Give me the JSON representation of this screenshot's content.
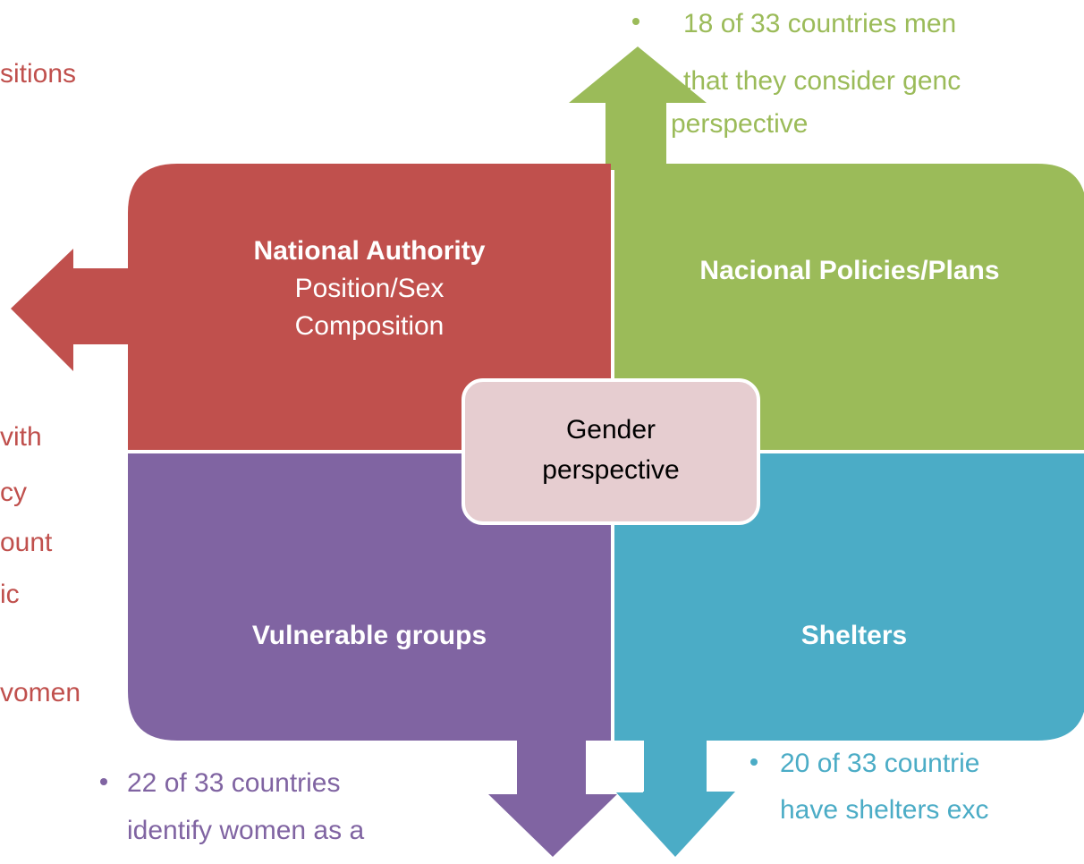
{
  "left_notes": {
    "top": "sitions",
    "lines": [
      "vith",
      "cy",
      "ount",
      "ic",
      "vomen"
    ]
  },
  "top_note": {
    "lines": [
      "18 of 33 countries men",
      "that they consider genc",
      "perspective"
    ]
  },
  "quadrants": {
    "national_authority": {
      "title": "National Authority",
      "lines": [
        "Position/Sex",
        "Composition"
      ]
    },
    "policies": {
      "title": "Nacional Policies/Plans"
    },
    "vulnerable": {
      "title": "Vulnerable groups"
    },
    "shelters": {
      "title": "Shelters"
    }
  },
  "center": {
    "lines": [
      "Gender",
      "perspective"
    ]
  },
  "bottom_left_note": {
    "lines": [
      "22 of 33 countries",
      "identify women as a"
    ]
  },
  "bottom_right_note": {
    "lines": [
      "20 of 33 countrie",
      "have shelters exc"
    ]
  }
}
